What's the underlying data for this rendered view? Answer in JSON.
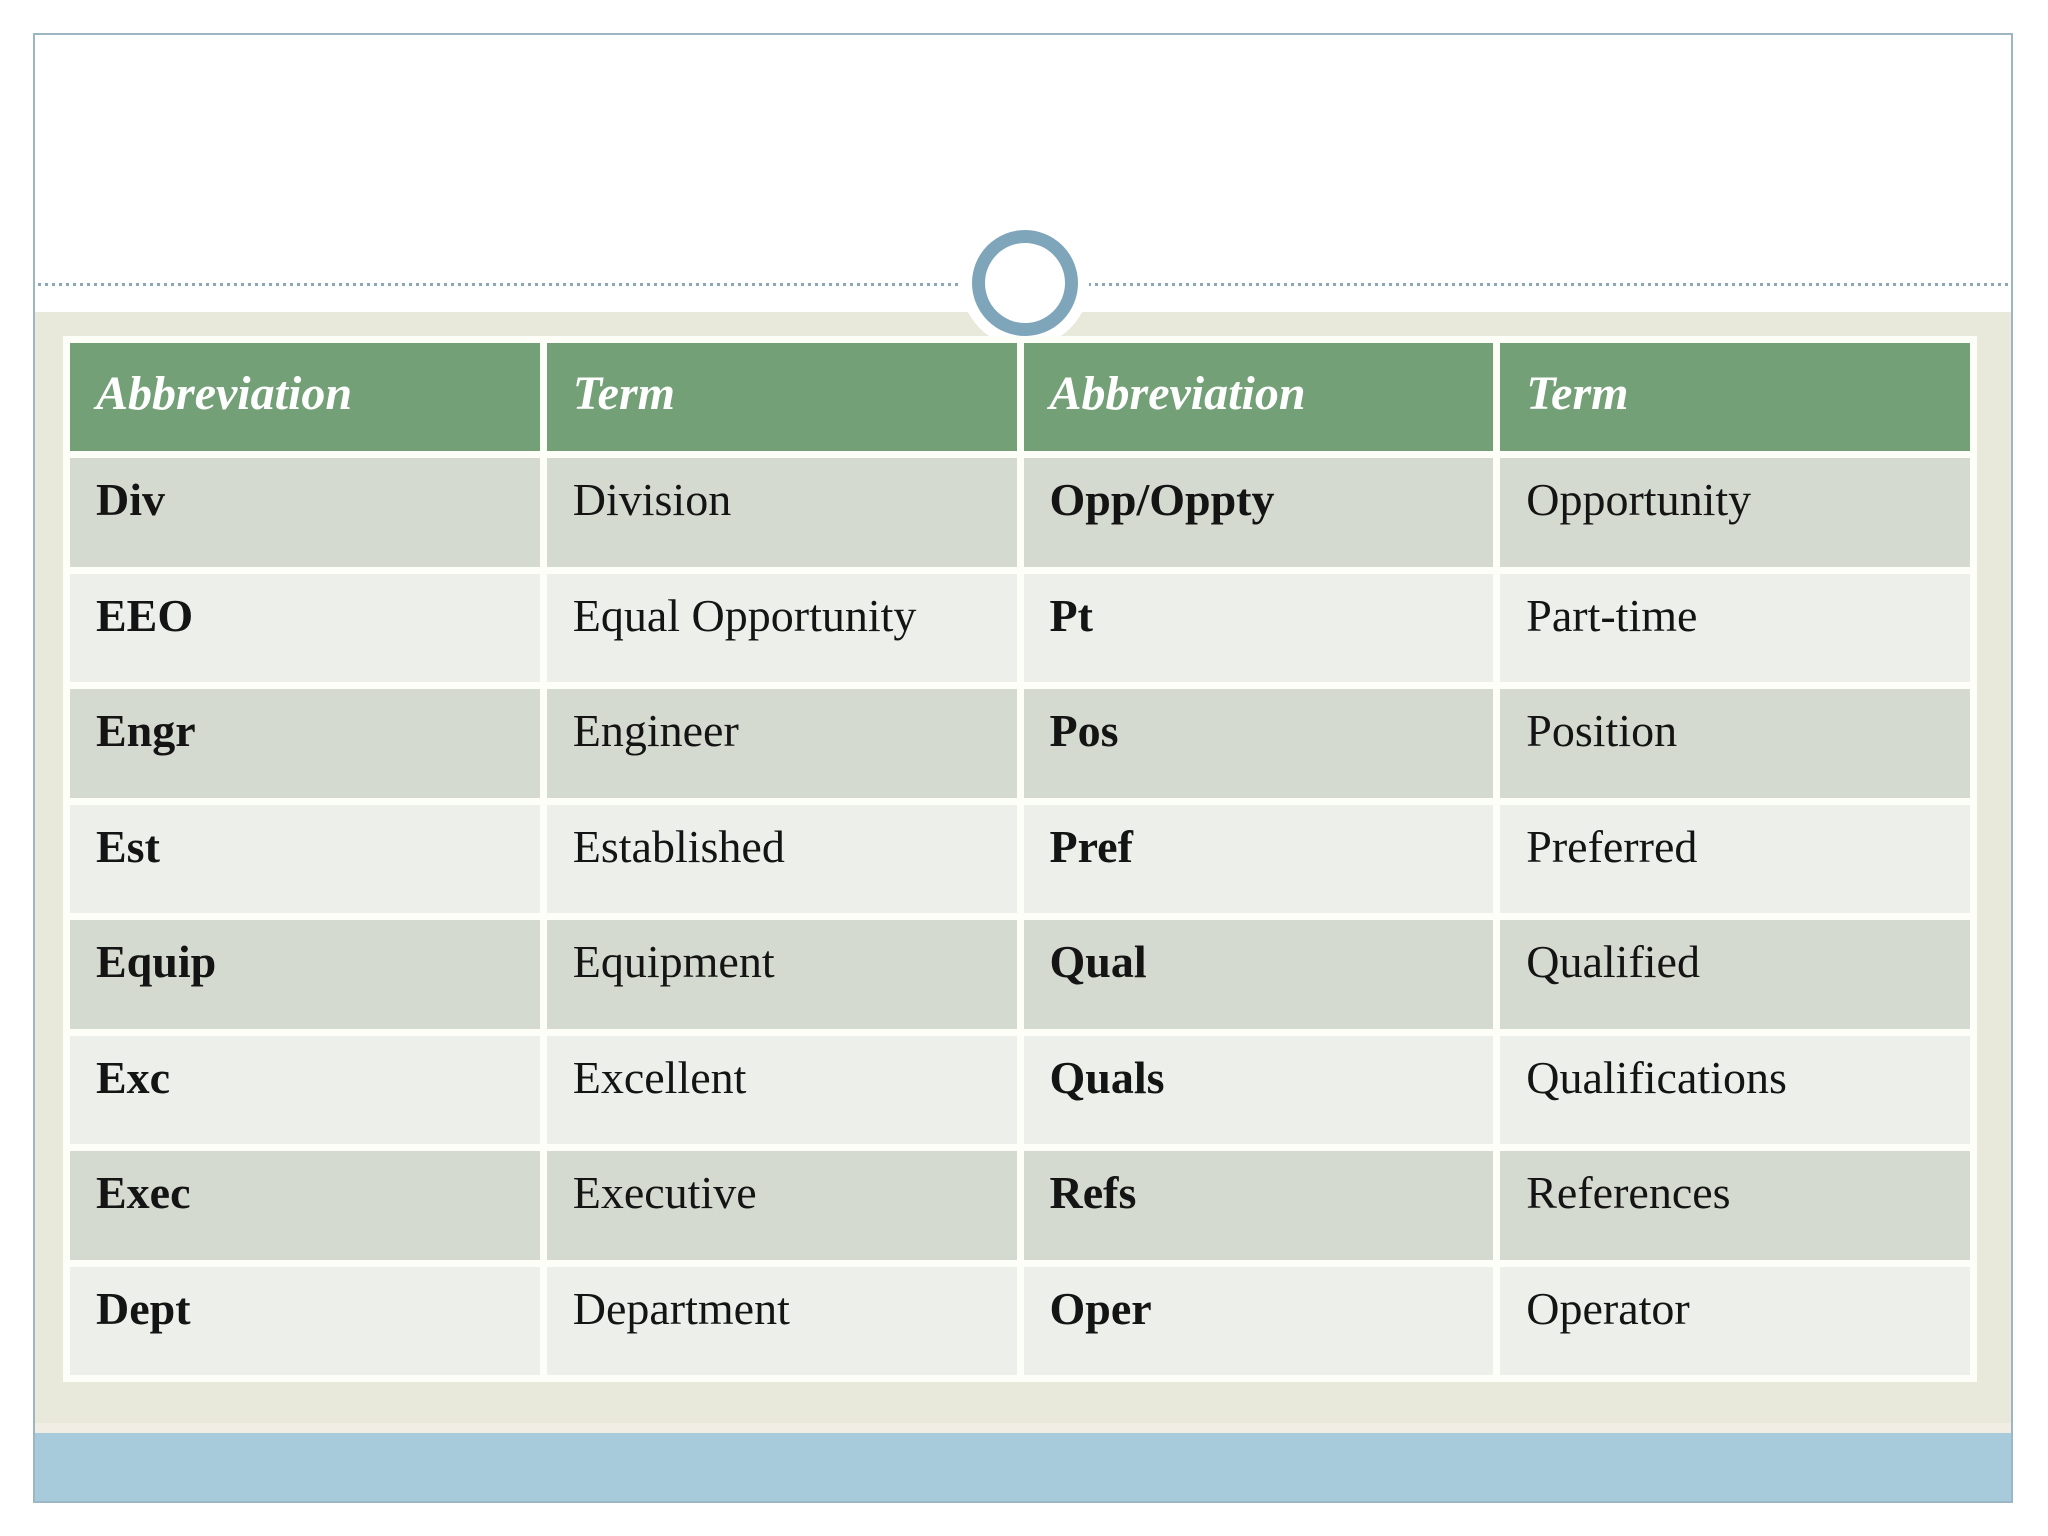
{
  "slide": {
    "title_area_text": "",
    "table": {
      "headers": [
        "Abbreviation",
        "Term",
        "Abbreviation",
        "Term"
      ],
      "rows": [
        [
          "Div",
          "Division",
          "Opp/Oppty",
          "Opportunity"
        ],
        [
          "EEO",
          "Equal Opportunity",
          "Pt",
          "Part-time"
        ],
        [
          "Engr",
          "Engineer",
          "Pos",
          "Position"
        ],
        [
          "Est",
          "Established",
          "Pref",
          "Preferred"
        ],
        [
          "Equip",
          "Equipment",
          "Qual",
          "Qualified"
        ],
        [
          "Exc",
          "Excellent",
          "Quals",
          "Qualifications"
        ],
        [
          "Exec",
          "Executive",
          "Refs",
          "References"
        ],
        [
          "Dept",
          "Department",
          "Oper",
          "Operator"
        ]
      ]
    },
    "colors": {
      "frame-border": "#9db6c4",
      "beige": "#e8e9db",
      "divider-strip": "#f1ede4",
      "accent-blue": "#a7cbdb",
      "dotted": "#8ca8b8",
      "ring": "#7fa5ba",
      "gap-white": "#fcfef7",
      "header-green": "#74a077",
      "header-text": "#ffffff",
      "row-dark": "#d4dacf",
      "row-light": "#edf0ea",
      "cell-text": "#141414"
    }
  }
}
